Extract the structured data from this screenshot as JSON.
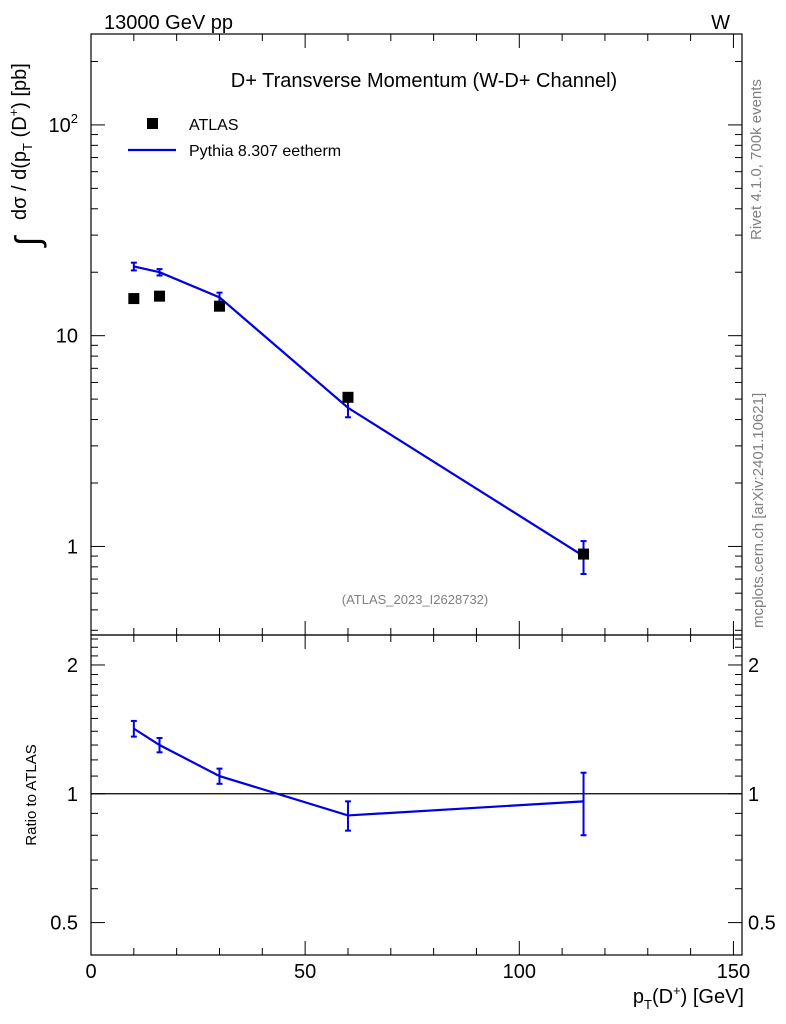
{
  "header": {
    "energy_label": "13000 GeV pp",
    "process_label": "W"
  },
  "side_labels": {
    "rivet": "Rivet 4.1.0,  700k events",
    "mcplots": "mcplots.cern.ch [arXiv:2401.10621]"
  },
  "analysis_id": "(ATLAS_2023_I2628732)",
  "chart_data": [
    {
      "type": "scatter",
      "panel": "main",
      "title": "D+ Transverse Momentum (W-D+ Channel)",
      "xlabel": "p_T(D+) [GeV]",
      "ylabel": "∫ dσ / d(p_T(D+)) [pb]",
      "yscale": "log",
      "xlim": [
        0,
        152
      ],
      "ylim": [
        0.38,
        270
      ],
      "yticks": [
        {
          "value": 1,
          "label": "1"
        },
        {
          "value": 10,
          "label": "10"
        },
        {
          "value": 100,
          "label": "10²"
        }
      ],
      "legend": {
        "placement": "top-left",
        "entries": [
          {
            "label": "ATLAS",
            "style": "square-marker",
            "color": "#000000"
          },
          {
            "label": "Pythia 8.307 eetherm",
            "style": "line",
            "color": "#0000e0"
          }
        ]
      },
      "series": [
        {
          "name": "ATLAS",
          "color": "#000000",
          "x": [
            10,
            16,
            30,
            60,
            115
          ],
          "y": [
            15.0,
            15.4,
            13.8,
            5.1,
            0.92
          ]
        },
        {
          "name": "Pythia 8.307 eetherm",
          "color": "#0000e0",
          "x": [
            10,
            16,
            30,
            60,
            115
          ],
          "y": [
            21.3,
            20.0,
            15.2,
            4.55,
            0.9
          ],
          "err": [
            0.9,
            0.7,
            0.8,
            0.45,
            0.16
          ]
        }
      ]
    },
    {
      "type": "line",
      "panel": "ratio",
      "xlabel": "p_T(D+) [GeV]",
      "ylabel": "Ratio to ATLAS",
      "yscale": "log",
      "xlim": [
        0,
        152
      ],
      "ylim": [
        0.42,
        2.35
      ],
      "reference_line": 1,
      "yticks": [
        {
          "value": 0.5,
          "label": "0.5"
        },
        {
          "value": 1,
          "label": "1"
        },
        {
          "value": 2,
          "label": "2"
        }
      ],
      "xticks": [
        {
          "value": 0,
          "label": "0"
        },
        {
          "value": 50,
          "label": "50"
        },
        {
          "value": 100,
          "label": "100"
        },
        {
          "value": 150,
          "label": "150"
        }
      ],
      "series": [
        {
          "name": "Pythia 8.307 eetherm / ATLAS",
          "color": "#0000e0",
          "x": [
            10,
            16,
            30,
            60,
            115
          ],
          "y": [
            1.42,
            1.3,
            1.1,
            0.89,
            0.96
          ],
          "err": [
            0.06,
            0.05,
            0.045,
            0.07,
            0.16
          ]
        }
      ]
    }
  ]
}
